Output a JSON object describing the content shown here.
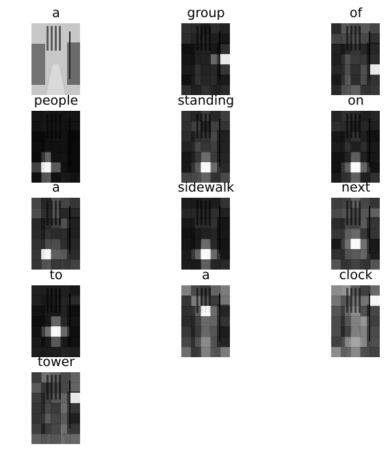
{
  "figure": {
    "words": [
      "a",
      "group",
      "of",
      "people",
      "standing",
      "on",
      "a",
      "sidewalk",
      "next",
      "to",
      "a",
      "clock",
      "tower"
    ],
    "attention_grid": {
      "cols": 5,
      "rows": 7
    },
    "attention": [
      {
        "word": "a",
        "kind": "photo",
        "level": 0.35
      },
      {
        "word": "group",
        "peak": [
          3,
          4
        ],
        "level": 0.15
      },
      {
        "word": "of",
        "peak": [
          4,
          4
        ],
        "level": 0.3
      },
      {
        "word": "people",
        "peak": [
          5,
          1
        ],
        "level": 0.05
      },
      {
        "word": "standing",
        "peak": [
          5,
          2
        ],
        "level": 0.25
      },
      {
        "word": "on",
        "peak": [
          5,
          2
        ],
        "level": 0.15
      },
      {
        "word": "a",
        "peak": [
          5,
          1
        ],
        "level": 0.3
      },
      {
        "word": "sidewalk",
        "peak": [
          5,
          2
        ],
        "level": 0.15
      },
      {
        "word": "next",
        "peak": [
          4,
          2
        ],
        "level": 0.35
      },
      {
        "word": "to",
        "peak": [
          4,
          2
        ],
        "level": 0.12
      },
      {
        "word": "a",
        "peak": [
          2,
          2
        ],
        "level": 0.45
      },
      {
        "word": "clock",
        "peak": [
          1,
          4
        ],
        "level": 0.55
      },
      {
        "word": "tower",
        "peak": [
          2,
          4
        ],
        "level": 0.4
      }
    ]
  }
}
